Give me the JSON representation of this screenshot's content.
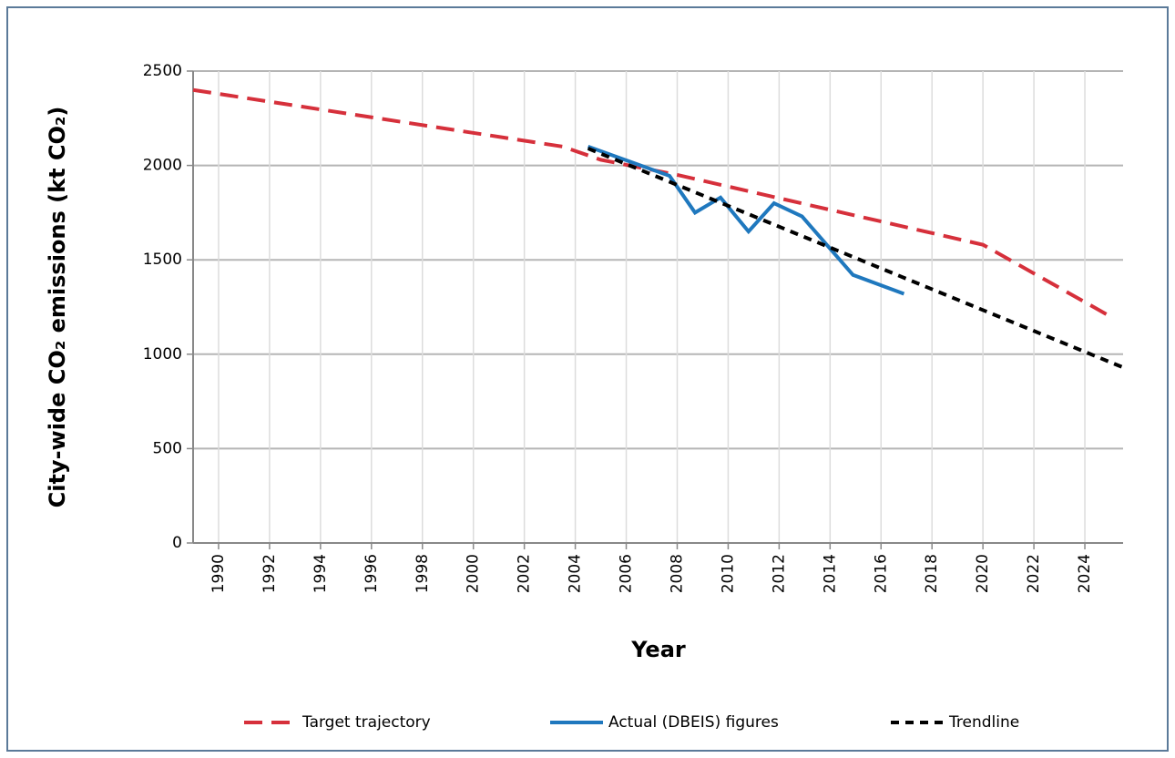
{
  "chart_data": {
    "type": "line",
    "xlabel": "Year",
    "ylabel": "City-wide CO₂ emissions (kt CO₂)",
    "xlim": [
      1989,
      2025.5
    ],
    "xticks": [
      1990,
      1992,
      1994,
      1996,
      1998,
      2000,
      2002,
      2004,
      2006,
      2008,
      2010,
      2012,
      2014,
      2016,
      2018,
      2020,
      2022,
      2024
    ],
    "ylim": [
      0,
      2500
    ],
    "yticks": [
      0,
      500,
      1000,
      1500,
      2000,
      2500
    ],
    "grid": true,
    "legend": "bottom",
    "series": [
      {
        "name": "Target trajectory",
        "color": "#d6303b",
        "dash": "dashed",
        "x": [
          1989,
          2003.5,
          2005,
          2008,
          2020,
          2025
        ],
        "values": [
          2400,
          2100,
          2030,
          1950,
          1580,
          1200
        ]
      },
      {
        "name": "Actual (DBEIS) figures",
        "color": "#1f78be",
        "dash": "solid",
        "x": [
          2004.5,
          2007.7,
          2008.7,
          2009.7,
          2010.8,
          2011.8,
          2012.9,
          2013.9,
          2014.9,
          2016.9
        ],
        "values": [
          2100,
          1945,
          1750,
          1830,
          1650,
          1800,
          1730,
          1575,
          1420,
          1320
        ]
      },
      {
        "name": "Trendline",
        "color": "#000000",
        "dash": "dotted",
        "x": [
          2004.5,
          2025.5
        ],
        "values": [
          2090,
          930
        ]
      }
    ]
  }
}
